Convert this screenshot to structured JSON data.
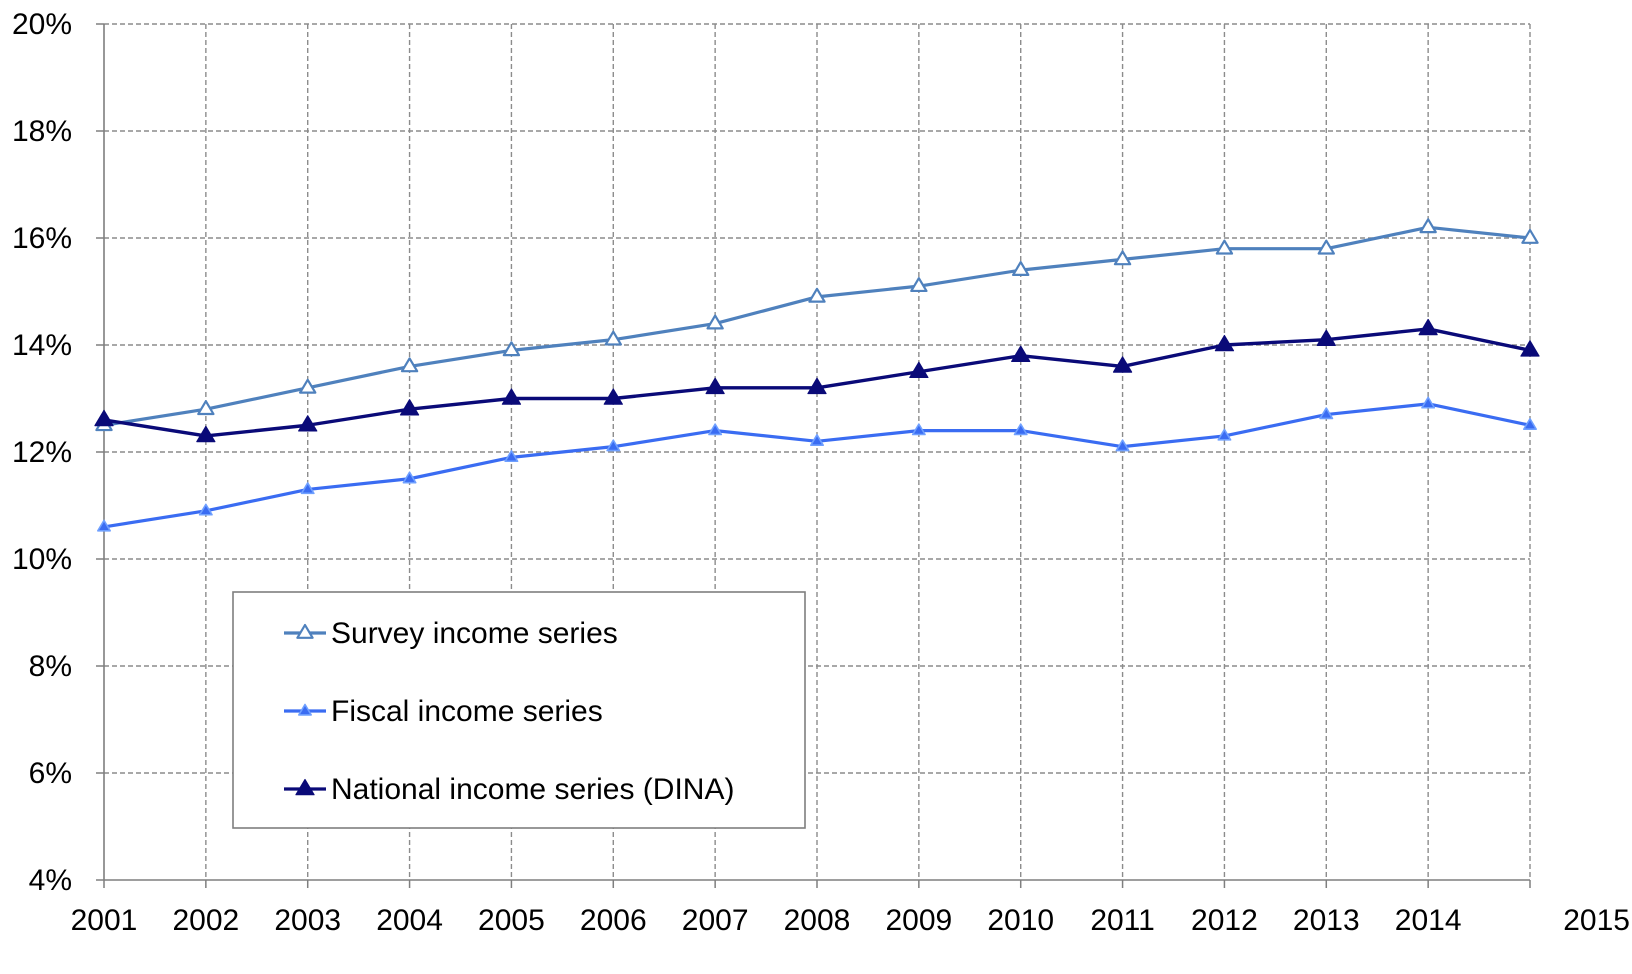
{
  "chart_data": {
    "type": "line",
    "title": "",
    "xlabel": "",
    "ylabel": "",
    "x": [
      "2001",
      "2002",
      "2003",
      "2004",
      "2005",
      "2006",
      "2007",
      "2008",
      "2009",
      "2010",
      "2011",
      "2012",
      "2013",
      "2014",
      "2015"
    ],
    "yticks": [
      "4%",
      "6%",
      "8%",
      "10%",
      "12%",
      "14%",
      "16%",
      "18%",
      "20%"
    ],
    "ylim": [
      4,
      20
    ],
    "grid": true,
    "legend_position": "bottom-left",
    "series": [
      {
        "name": "Survey income series",
        "color": "#4f81bd",
        "marker": "hollow-triangle",
        "values": [
          12.5,
          12.8,
          13.2,
          13.6,
          13.9,
          14.1,
          14.4,
          14.9,
          15.1,
          15.4,
          15.6,
          15.8,
          15.8,
          16.2,
          16.0
        ]
      },
      {
        "name": "Fiscal income series",
        "color": "#3a6cf2",
        "marker": "small-filled-triangle",
        "values": [
          10.6,
          10.9,
          11.3,
          11.5,
          11.9,
          12.1,
          12.4,
          12.2,
          12.4,
          12.4,
          12.1,
          12.3,
          12.7,
          12.9,
          12.5
        ]
      },
      {
        "name": "National income series (DINA)",
        "color": "#0a0a78",
        "marker": "filled-triangle",
        "values": [
          12.6,
          12.3,
          12.5,
          12.8,
          13.0,
          13.0,
          13.2,
          13.2,
          13.5,
          13.8,
          13.6,
          14.0,
          14.1,
          14.3,
          13.9
        ]
      }
    ]
  }
}
